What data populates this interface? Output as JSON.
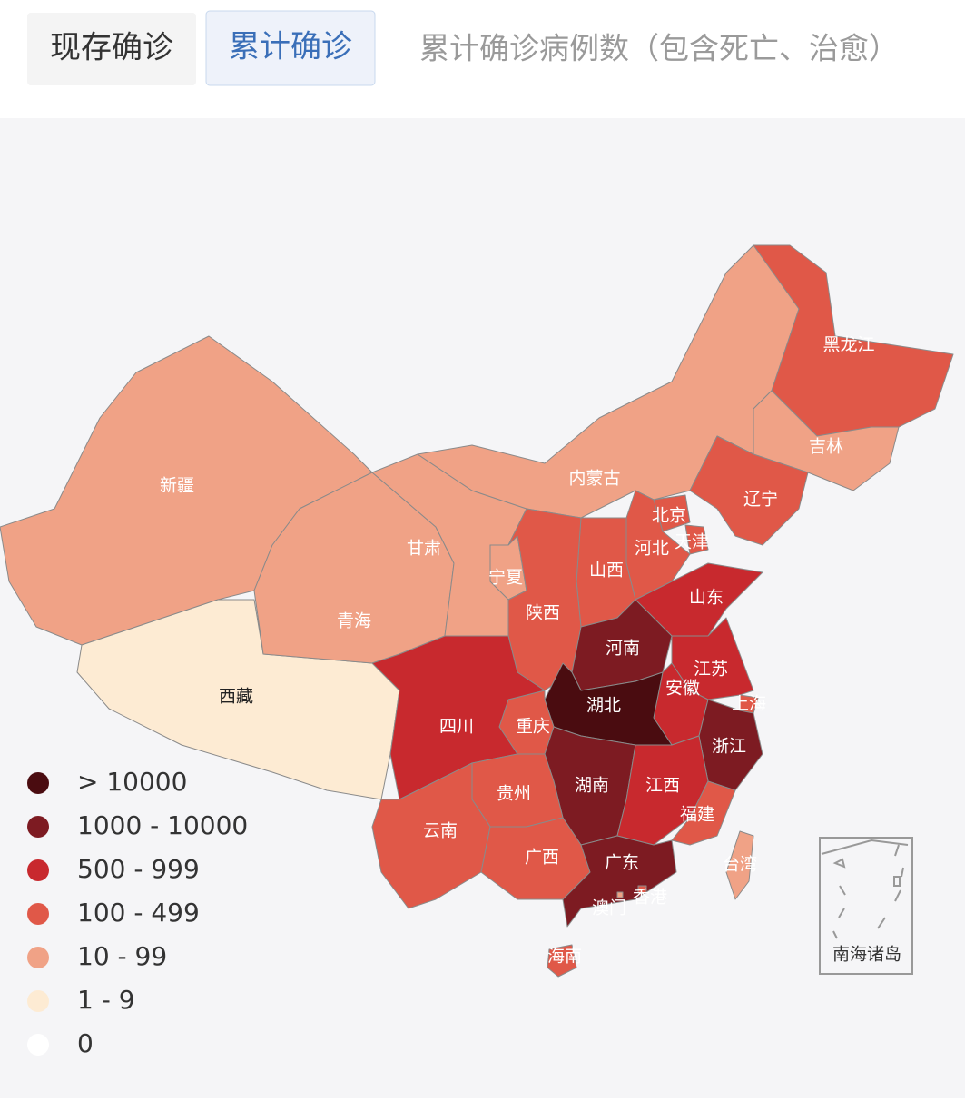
{
  "tabs": [
    {
      "label": "现存确诊",
      "active": false
    },
    {
      "label": "累计确诊",
      "active": true
    }
  ],
  "subtitle": "累计确诊病例数（包含死亡、治愈）",
  "legend": [
    {
      "label": "> 10000",
      "color": "#4a0c10"
    },
    {
      "label": "1000 - 10000",
      "color": "#7d1b22"
    },
    {
      "label": "500 - 999",
      "color": "#c8292e"
    },
    {
      "label": "100 - 499",
      "color": "#e05848"
    },
    {
      "label": "10 - 99",
      "color": "#f0a286"
    },
    {
      "label": "1 - 9",
      "color": "#fdebd3"
    },
    {
      "label": "0",
      "color": "#ffffff"
    }
  ],
  "regions": [
    {
      "label": "新疆",
      "color": "#f0a286"
    },
    {
      "label": "西藏",
      "color": "#fdebd3"
    },
    {
      "label": "青海",
      "color": "#f0a286"
    },
    {
      "label": "甘肃",
      "color": "#f0a286"
    },
    {
      "label": "内蒙古",
      "color": "#f0a286"
    },
    {
      "label": "黑龙江",
      "color": "#e05848"
    },
    {
      "label": "吉林",
      "color": "#f0a286"
    },
    {
      "label": "辽宁",
      "color": "#e05848"
    },
    {
      "label": "北京",
      "color": "#e05848"
    },
    {
      "label": "天津",
      "color": "#e05848"
    },
    {
      "label": "河北",
      "color": "#e05848"
    },
    {
      "label": "山西",
      "color": "#e05848"
    },
    {
      "label": "宁夏",
      "color": "#f0a286"
    },
    {
      "label": "陕西",
      "color": "#e05848"
    },
    {
      "label": "山东",
      "color": "#c8292e"
    },
    {
      "label": "河南",
      "color": "#7d1b22"
    },
    {
      "label": "江苏",
      "color": "#c8292e"
    },
    {
      "label": "安徽",
      "color": "#c8292e"
    },
    {
      "label": "上海",
      "color": "#e05848"
    },
    {
      "label": "浙江",
      "color": "#7d1b22"
    },
    {
      "label": "湖北",
      "color": "#4a0c10"
    },
    {
      "label": "重庆",
      "color": "#e05848"
    },
    {
      "label": "四川",
      "color": "#c8292e"
    },
    {
      "label": "湖南",
      "color": "#7d1b22"
    },
    {
      "label": "江西",
      "color": "#c8292e"
    },
    {
      "label": "福建",
      "color": "#e05848"
    },
    {
      "label": "贵州",
      "color": "#e05848"
    },
    {
      "label": "云南",
      "color": "#e05848"
    },
    {
      "label": "广西",
      "color": "#e05848"
    },
    {
      "label": "广东",
      "color": "#7d1b22"
    },
    {
      "label": "香港",
      "color": "#e05848"
    },
    {
      "label": "澳门",
      "color": "#f0a286"
    },
    {
      "label": "海南",
      "color": "#e05848"
    },
    {
      "label": "台湾",
      "color": "#f0a286"
    }
  ],
  "inset_label": "南海诸岛"
}
